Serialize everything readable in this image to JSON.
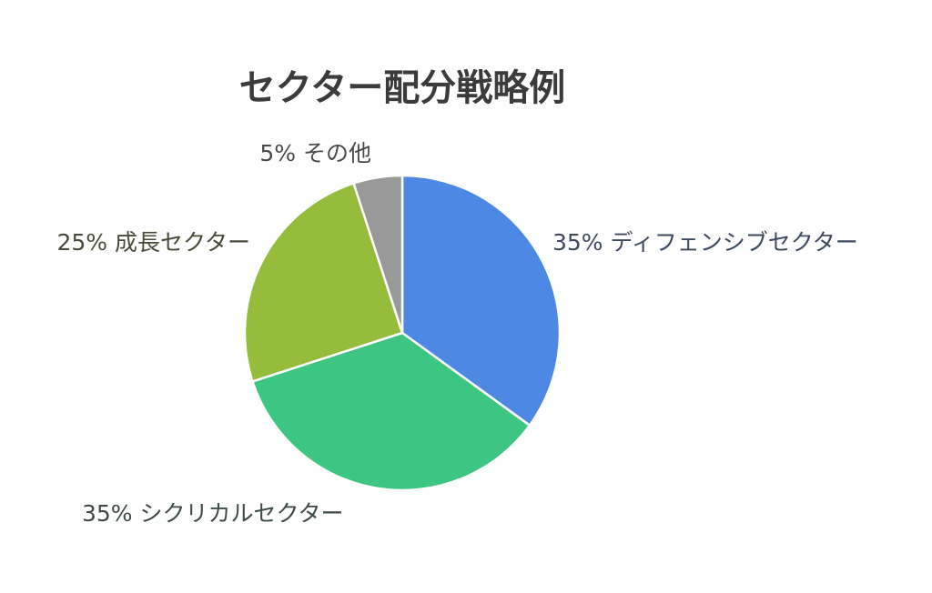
{
  "chart_data": {
    "type": "pie",
    "title": "セクター配分戦略例",
    "start_angle_deg": 0,
    "direction": "clockwise",
    "slices": [
      {
        "label": "ディフェンシブセクター",
        "value": 35,
        "display": "35% ディフェンシブセクター",
        "color": "#4e88e5",
        "label_color": "#3e4a5e"
      },
      {
        "label": "シクリカルセクター",
        "value": 35,
        "display": "35% シクリカルセクター",
        "color": "#3cc682",
        "label_color": "#3e4a4a"
      },
      {
        "label": "成長セクター",
        "value": 25,
        "display": "25% 成長セクター",
        "color": "#95bd3b",
        "label_color": "#4a4a3a"
      },
      {
        "label": "その他",
        "value": 5,
        "display": "5% その他",
        "color": "#999999",
        "label_color": "#4a4a4a"
      }
    ]
  }
}
